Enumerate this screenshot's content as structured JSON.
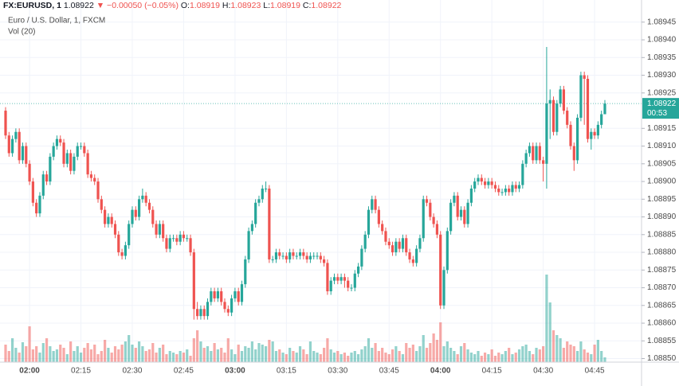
{
  "chart_data": {
    "type": "candlestick",
    "header": {
      "symbol": "FX:EURUSD, 1",
      "price": "1.08922",
      "change": "▼ −0.00050 (−0.05%)",
      "ohlc": [
        {
          "label": "O:",
          "value": "1.08919"
        },
        {
          "label": "H:",
          "value": "1.08923"
        },
        {
          "label": "L:",
          "value": "1.08919"
        },
        {
          "label": "C:",
          "value": "1.08922"
        }
      ]
    },
    "title": "Euro / U.S. Dollar, 1, FXCM",
    "volume_label": "Vol (20)",
    "categories": [
      null,
      null,
      null,
      null,
      null,
      null,
      null,
      "02:00",
      null,
      null,
      null,
      null,
      null,
      null,
      null,
      null,
      null,
      null,
      null,
      null,
      null,
      null,
      "02:15",
      null,
      null,
      null,
      null,
      null,
      null,
      null,
      null,
      null,
      null,
      null,
      null,
      null,
      null,
      "02:30",
      null,
      null,
      null,
      null,
      null,
      null,
      null,
      null,
      null,
      null,
      null,
      null,
      null,
      null,
      "02:45",
      null,
      null,
      null,
      null,
      null,
      null,
      null,
      null,
      null,
      null,
      null,
      null,
      null,
      null,
      "03:00",
      null,
      null,
      null,
      null,
      null,
      null,
      null,
      null,
      null,
      null,
      null,
      null,
      null,
      null,
      "03:15",
      null,
      null,
      null,
      null,
      null,
      null,
      null,
      null,
      null,
      null,
      null,
      null,
      null,
      null,
      "03:30",
      null,
      null,
      null,
      null,
      null,
      null,
      null,
      null,
      null,
      null,
      null,
      null,
      null,
      null,
      "03:45",
      null,
      null,
      null,
      null,
      null,
      null,
      null,
      null,
      null,
      null,
      null,
      null,
      null,
      null,
      "04:00",
      null,
      null,
      null,
      null,
      null,
      null,
      null,
      null,
      null,
      null,
      null,
      null,
      null,
      null,
      "04:15",
      null,
      null,
      null,
      null,
      null,
      null,
      null,
      null,
      null,
      null,
      null,
      null,
      null,
      null,
      "04:30",
      null,
      null,
      null,
      null,
      null,
      null,
      null,
      null,
      null,
      null,
      null,
      null,
      null,
      null,
      "04:45",
      null,
      null,
      null
    ],
    "open": [
      1.0892,
      1.08913,
      1.08908,
      1.08912,
      1.08914,
      1.08906,
      1.0891,
      1.08905,
      1.089,
      1.08894,
      1.08891,
      1.08896,
      1.08902,
      1.089,
      1.08907,
      1.0891,
      1.08912,
      1.08911,
      1.08905,
      1.08908,
      1.08903,
      1.08907,
      1.0891,
      1.0891,
      1.08908,
      1.08902,
      1.08901,
      1.089,
      1.08895,
      1.08892,
      1.08888,
      1.0889,
      1.08888,
      1.08885,
      1.0888,
      1.08879,
      1.08882,
      1.08888,
      1.08892,
      1.0889,
      1.08895,
      1.08896,
      1.08894,
      1.08892,
      1.08888,
      1.08885,
      1.08888,
      1.08884,
      1.08881,
      1.08884,
      1.08884,
      1.08883,
      1.08885,
      1.08884,
      1.08884,
      1.0888,
      1.08864,
      1.08862,
      1.08864,
      1.08862,
      1.08866,
      1.08869,
      1.08867,
      1.08869,
      1.08866,
      1.08864,
      1.08863,
      1.08867,
      1.08869,
      1.08866,
      1.08871,
      1.08878,
      1.08886,
      1.08888,
      1.08894,
      1.08895,
      1.08898,
      1.08898,
      1.08878,
      1.08878,
      1.0888,
      1.08879,
      1.08879,
      1.08878,
      1.0888,
      1.08879,
      1.08879,
      1.0888,
      1.08879,
      1.08878,
      1.08879,
      1.08879,
      1.08879,
      1.08878,
      1.08877,
      1.08869,
      1.08872,
      1.08873,
      1.08872,
      1.08873,
      1.08872,
      1.0887,
      1.0887,
      1.08874,
      1.08876,
      1.08881,
      1.08885,
      1.08892,
      1.08895,
      1.08892,
      1.08888,
      1.08886,
      1.08883,
      1.08882,
      1.0888,
      1.08883,
      1.08881,
      1.08884,
      1.0888,
      1.08878,
      1.08877,
      1.08881,
      1.08884,
      1.08895,
      1.08894,
      1.0889,
      1.08888,
      1.08885,
      1.08865,
      1.08875,
      1.08886,
      1.08894,
      1.08896,
      1.0889,
      1.08892,
      1.08888,
      1.08894,
      1.08898,
      1.089,
      1.08901,
      1.089,
      1.08899,
      1.089,
      1.08899,
      1.08898,
      1.08897,
      1.08897,
      1.08898,
      1.08897,
      1.08899,
      1.08898,
      1.08899,
      1.08905,
      1.08908,
      1.0891,
      1.08906,
      1.0891,
      1.08906,
      1.08905,
      1.08922,
      1.08923,
      1.08914,
      1.08922,
      1.08926,
      1.0892,
      1.08916,
      1.0891,
      1.08906,
      1.08918,
      1.0893,
      1.08929,
      1.08912,
      1.08914,
      1.08913,
      1.08916,
      1.08919
    ],
    "high": [
      1.08921,
      1.08914,
      1.08913,
      1.08915,
      1.08915,
      1.08911,
      1.08911,
      1.08906,
      1.08901,
      1.08895,
      1.08897,
      1.08903,
      1.08903,
      1.08908,
      1.08911,
      1.08913,
      1.08913,
      1.08912,
      1.08909,
      1.08909,
      1.08908,
      1.08911,
      1.08911,
      1.08911,
      1.08909,
      1.08903,
      1.08902,
      1.08901,
      1.08896,
      1.08893,
      1.08891,
      1.08891,
      1.08889,
      1.08886,
      1.08881,
      1.08883,
      1.08889,
      1.08893,
      1.08893,
      1.08896,
      1.08898,
      1.08897,
      1.08895,
      1.08893,
      1.08889,
      1.08889,
      1.08889,
      1.08885,
      1.08885,
      1.08885,
      1.08885,
      1.08886,
      1.08886,
      1.08885,
      1.08885,
      1.08881,
      1.08866,
      1.08865,
      1.08865,
      1.08867,
      1.0887,
      1.0887,
      1.0887,
      1.0887,
      1.08867,
      1.08865,
      1.08868,
      1.0887,
      1.0887,
      1.08872,
      1.08879,
      1.08887,
      1.08889,
      1.08895,
      1.08896,
      1.08899,
      1.089,
      1.08899,
      1.08879,
      1.08881,
      1.08881,
      1.0888,
      1.0888,
      1.08881,
      1.08881,
      1.0888,
      1.08881,
      1.08881,
      1.0888,
      1.0888,
      1.0888,
      1.0888,
      1.0888,
      1.08879,
      1.08878,
      1.08873,
      1.08874,
      1.08874,
      1.08874,
      1.08874,
      1.08873,
      1.08871,
      1.08875,
      1.08877,
      1.08882,
      1.08886,
      1.08893,
      1.08896,
      1.08896,
      1.08893,
      1.08889,
      1.08887,
      1.08884,
      1.08883,
      1.08884,
      1.08884,
      1.08885,
      1.08885,
      1.08881,
      1.08879,
      1.08882,
      1.08885,
      1.08896,
      1.08896,
      1.08895,
      1.08891,
      1.08889,
      1.08886,
      1.08876,
      1.08887,
      1.08895,
      1.08897,
      1.08897,
      1.08893,
      1.08893,
      1.08895,
      1.08899,
      1.08901,
      1.08902,
      1.08902,
      1.08901,
      1.08901,
      1.08901,
      1.089,
      1.08899,
      1.08898,
      1.08899,
      1.08899,
      1.089,
      1.089,
      1.089,
      1.08906,
      1.08909,
      1.08911,
      1.08911,
      1.08911,
      1.08911,
      1.08907,
      1.08938,
      1.08926,
      1.08924,
      1.08923,
      1.08927,
      1.08927,
      1.08921,
      1.08917,
      1.08911,
      1.08919,
      1.08931,
      1.08931,
      1.0893,
      1.08915,
      1.08915,
      1.08917,
      1.0892,
      1.08923
    ],
    "low": [
      1.08912,
      1.08907,
      1.08907,
      1.08911,
      1.08905,
      1.08905,
      1.08904,
      1.08899,
      1.08893,
      1.0889,
      1.0889,
      1.08895,
      1.08899,
      1.08899,
      1.08906,
      1.08909,
      1.0891,
      1.08904,
      1.08904,
      1.08902,
      1.08902,
      1.08906,
      1.08909,
      1.08907,
      1.08901,
      1.089,
      1.08899,
      1.08894,
      1.08891,
      1.08887,
      1.08887,
      1.08887,
      1.08884,
      1.08879,
      1.08878,
      1.08878,
      1.08881,
      1.08887,
      1.08889,
      1.08889,
      1.08894,
      1.08893,
      1.08891,
      1.08887,
      1.08884,
      1.08884,
      1.08883,
      1.0888,
      1.0888,
      1.08883,
      1.08882,
      1.08882,
      1.08883,
      1.08883,
      1.08879,
      1.08861,
      1.08861,
      1.08861,
      1.08861,
      1.08861,
      1.08865,
      1.08866,
      1.08866,
      1.08865,
      1.08863,
      1.08862,
      1.08862,
      1.08866,
      1.08865,
      1.08865,
      1.0887,
      1.08877,
      1.08885,
      1.08887,
      1.08893,
      1.08894,
      1.08897,
      1.08877,
      1.08877,
      1.08877,
      1.08878,
      1.08878,
      1.08877,
      1.08877,
      1.08878,
      1.08878,
      1.08878,
      1.08878,
      1.08877,
      1.08877,
      1.08878,
      1.08878,
      1.08877,
      1.08876,
      1.08868,
      1.08868,
      1.08871,
      1.08871,
      1.08871,
      1.0887,
      1.08869,
      1.08869,
      1.08869,
      1.08873,
      1.08875,
      1.0888,
      1.08884,
      1.08891,
      1.08891,
      1.08887,
      1.08885,
      1.08882,
      1.08881,
      1.08879,
      1.08879,
      1.0888,
      1.0888,
      1.08879,
      1.08877,
      1.08876,
      1.08876,
      1.0888,
      1.08883,
      1.08893,
      1.08889,
      1.08887,
      1.08884,
      1.08864,
      1.08864,
      1.08874,
      1.08885,
      1.08893,
      1.08889,
      1.08889,
      1.08887,
      1.08887,
      1.08893,
      1.08897,
      1.08899,
      1.08899,
      1.08898,
      1.08898,
      1.08898,
      1.08897,
      1.08896,
      1.08896,
      1.08896,
      1.08896,
      1.08896,
      1.08897,
      1.08897,
      1.08898,
      1.08904,
      1.08907,
      1.08905,
      1.08905,
      1.08905,
      1.089,
      1.08898,
      1.08912,
      1.08913,
      1.08913,
      1.08921,
      1.08919,
      1.08915,
      1.08909,
      1.08903,
      1.08905,
      1.08917,
      1.08916,
      1.08911,
      1.08909,
      1.08912,
      1.08912,
      1.08915,
      1.08919
    ],
    "close": [
      1.08913,
      1.08908,
      1.08912,
      1.08914,
      1.08906,
      1.0891,
      1.08905,
      1.089,
      1.08894,
      1.08891,
      1.08896,
      1.08902,
      1.089,
      1.08907,
      1.0891,
      1.08912,
      1.08911,
      1.08905,
      1.08908,
      1.08903,
      1.08907,
      1.0891,
      1.0891,
      1.08908,
      1.08902,
      1.08901,
      1.089,
      1.08895,
      1.08892,
      1.08888,
      1.0889,
      1.08888,
      1.08885,
      1.0888,
      1.08879,
      1.08882,
      1.08888,
      1.08892,
      1.0889,
      1.08895,
      1.08896,
      1.08894,
      1.08892,
      1.08888,
      1.08885,
      1.08888,
      1.08884,
      1.08881,
      1.08884,
      1.08884,
      1.08883,
      1.08885,
      1.08884,
      1.08884,
      1.0888,
      1.08864,
      1.08862,
      1.08864,
      1.08862,
      1.08866,
      1.08869,
      1.08867,
      1.08869,
      1.08866,
      1.08864,
      1.08863,
      1.08867,
      1.08869,
      1.08866,
      1.08871,
      1.08878,
      1.08886,
      1.08888,
      1.08894,
      1.08895,
      1.08898,
      1.08898,
      1.08878,
      1.08878,
      1.0888,
      1.08879,
      1.08879,
      1.08878,
      1.0888,
      1.08879,
      1.08879,
      1.0888,
      1.08879,
      1.08878,
      1.08879,
      1.08879,
      1.08879,
      1.08878,
      1.08877,
      1.08869,
      1.08872,
      1.08873,
      1.08872,
      1.08873,
      1.08872,
      1.0887,
      1.0887,
      1.08874,
      1.08876,
      1.08881,
      1.08885,
      1.08892,
      1.08895,
      1.08892,
      1.08888,
      1.08886,
      1.08883,
      1.08882,
      1.0888,
      1.08883,
      1.08881,
      1.08884,
      1.0888,
      1.08878,
      1.08877,
      1.08881,
      1.08884,
      1.08895,
      1.08894,
      1.0889,
      1.08888,
      1.08885,
      1.08865,
      1.08875,
      1.08886,
      1.08894,
      1.08896,
      1.0889,
      1.08892,
      1.08888,
      1.08894,
      1.08898,
      1.089,
      1.08901,
      1.089,
      1.08899,
      1.089,
      1.08899,
      1.08898,
      1.08897,
      1.08897,
      1.08898,
      1.08897,
      1.08899,
      1.08898,
      1.08899,
      1.08905,
      1.08908,
      1.0891,
      1.08906,
      1.0891,
      1.08906,
      1.08905,
      1.08922,
      1.08923,
      1.08914,
      1.08922,
      1.08926,
      1.0892,
      1.08916,
      1.0891,
      1.08906,
      1.08918,
      1.0893,
      1.08929,
      1.08912,
      1.08914,
      1.08913,
      1.08916,
      1.08919,
      1.08922
    ],
    "volume": [
      22,
      14,
      30,
      18,
      12,
      25,
      20,
      45,
      16,
      20,
      12,
      24,
      30,
      20,
      14,
      16,
      22,
      18,
      10,
      26,
      14,
      20,
      12,
      18,
      24,
      16,
      22,
      10,
      14,
      28,
      18,
      12,
      20,
      16,
      22,
      26,
      34,
      22,
      18,
      26,
      20,
      14,
      16,
      24,
      12,
      18,
      22,
      10,
      14,
      12,
      10,
      14,
      12,
      16,
      8,
      30,
      40,
      26,
      18,
      20,
      14,
      24,
      16,
      18,
      12,
      30,
      16,
      10,
      22,
      14,
      20,
      18,
      26,
      16,
      24,
      22,
      20,
      28,
      26,
      14,
      16,
      12,
      10,
      18,
      14,
      12,
      20,
      16,
      10,
      26,
      14,
      12,
      10,
      18,
      30,
      16,
      12,
      14,
      10,
      12,
      8,
      12,
      14,
      10,
      16,
      20,
      30,
      18,
      24,
      14,
      18,
      12,
      10,
      16,
      20,
      14,
      10,
      24,
      18,
      22,
      14,
      20,
      34,
      18,
      24,
      36,
      28,
      50,
      20,
      26,
      18,
      14,
      10,
      20,
      24,
      16,
      12,
      10,
      14,
      8,
      12,
      10,
      16,
      8,
      12,
      10,
      14,
      18,
      10,
      12,
      16,
      20,
      22,
      14,
      10,
      18,
      16,
      20,
      110,
      75,
      40,
      34,
      30,
      18,
      26,
      22,
      20,
      14,
      26,
      16,
      12,
      10,
      22,
      28,
      14,
      6
    ],
    "up_color": "#26a69a",
    "down_color": "#ef5350",
    "last_price": 1.08922,
    "countdown": "00:53",
    "ylim": [
      1.08849,
      1.08949
    ],
    "yticks": [
      {
        "value": 1.0885,
        "label": "1.08850"
      },
      1.08855,
      {
        "value": 1.0886,
        "label": "1.08860"
      },
      1.08865,
      {
        "value": 1.0887,
        "label": "1.08870"
      },
      1.08875,
      {
        "value": 1.0888,
        "label": "1.08880"
      },
      1.08885,
      {
        "value": 1.0889,
        "label": "1.08890"
      },
      1.08895,
      {
        "value": 1.089,
        "label": "1.08900"
      },
      1.08905,
      {
        "value": 1.0891,
        "label": "1.08910"
      },
      1.08915,
      1.08925,
      {
        "value": 1.0893,
        "label": "1.08930"
      },
      1.08935,
      {
        "value": 1.0894,
        "label": "1.08940"
      },
      1.08945
    ],
    "grid": true
  }
}
